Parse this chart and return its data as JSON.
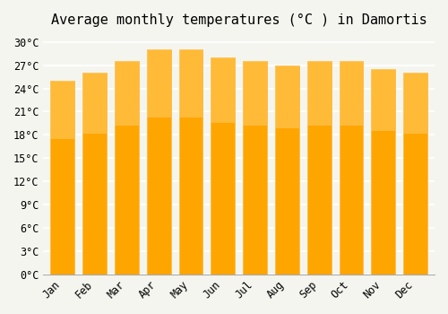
{
  "title": "Average monthly temperatures (°C ) in Damortis",
  "months": [
    "Jan",
    "Feb",
    "Mar",
    "Apr",
    "May",
    "Jun",
    "Jul",
    "Aug",
    "Sep",
    "Oct",
    "Nov",
    "Dec"
  ],
  "values": [
    25.0,
    26.0,
    27.5,
    29.0,
    29.0,
    28.0,
    27.5,
    27.0,
    27.5,
    27.5,
    26.5,
    26.0
  ],
  "bar_color_face": "#FFA500",
  "bar_color_edge": "#FFB733",
  "ylim": [
    0,
    31
  ],
  "yticks": [
    0,
    3,
    6,
    9,
    12,
    15,
    18,
    21,
    24,
    27,
    30
  ],
  "ytick_labels": [
    "0°C",
    "3°C",
    "6°C",
    "9°C",
    "12°C",
    "15°C",
    "18°C",
    "21°C",
    "24°C",
    "27°C",
    "30°C"
  ],
  "background_color": "#f5f5f0",
  "grid_color": "#ffffff",
  "bar_gradient_top": "#FFB733",
  "bar_gradient_bottom": "#FF8C00",
  "title_fontsize": 11,
  "tick_fontsize": 8.5,
  "font_family": "monospace"
}
